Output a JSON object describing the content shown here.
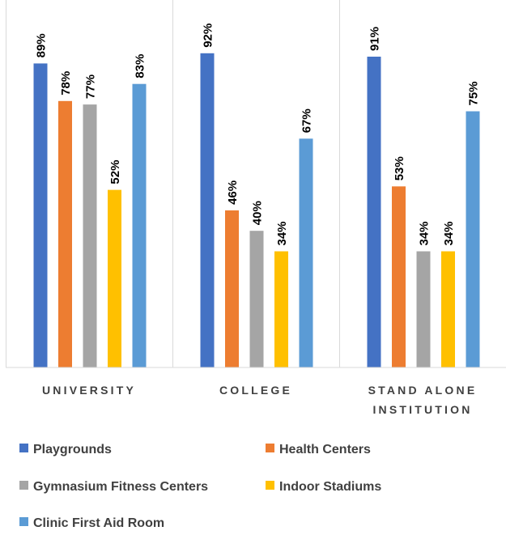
{
  "chart_data": {
    "type": "bar",
    "categories": [
      [
        "UNIVERSITY"
      ],
      [
        "COLLEGE"
      ],
      [
        "STAND ALONE",
        "INSTITUTION"
      ]
    ],
    "series": [
      {
        "name": "Playgrounds",
        "color": "#4472C4",
        "values": [
          89,
          92,
          91
        ],
        "labels": [
          "89%",
          "92%",
          "91%"
        ]
      },
      {
        "name": "Health Centers",
        "color": "#ED7D31",
        "values": [
          78,
          46,
          53
        ],
        "labels": [
          "78%",
          "46%",
          "53%"
        ]
      },
      {
        "name": "Gymnasium Fitness Centers",
        "color": "#A5A5A5",
        "values": [
          77,
          40,
          34
        ],
        "labels": [
          "77%",
          "40%",
          "34%"
        ]
      },
      {
        "name": "Indoor Stadiums",
        "color": "#FFC000",
        "values": [
          52,
          34,
          34
        ],
        "labels": [
          "52%",
          "34%",
          "34%"
        ]
      },
      {
        "name": "Clinic First Aid Room",
        "color": "#5B9BD5",
        "values": [
          83,
          67,
          75
        ],
        "labels": [
          "83%",
          "67%",
          "75%"
        ]
      }
    ],
    "ylim": [
      0,
      100
    ],
    "value_unit": "%",
    "grid": false,
    "category_separators": true,
    "legend_position": "bottom"
  }
}
